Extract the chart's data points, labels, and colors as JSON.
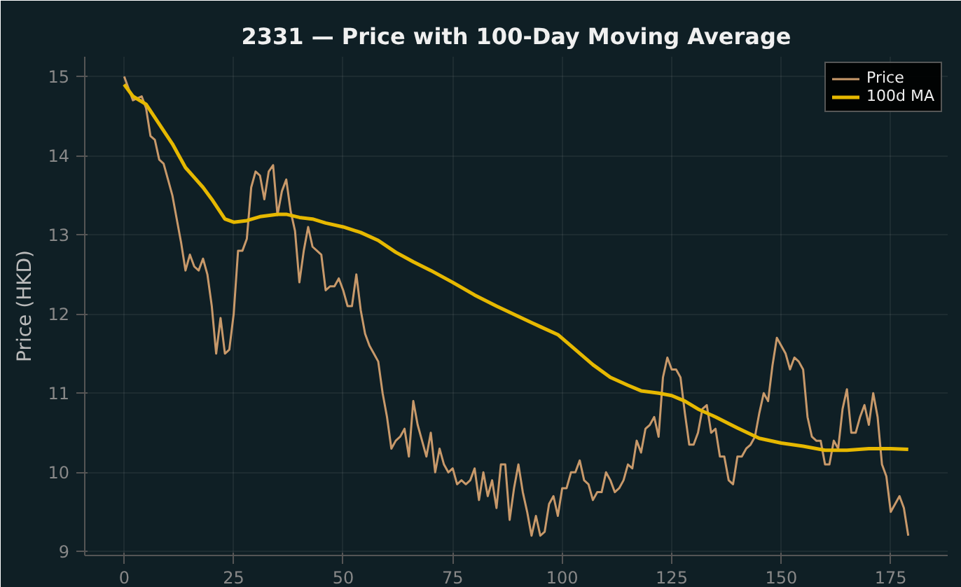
{
  "chart_data": {
    "type": "line",
    "title": "2331 — Price with 100-Day Moving Average",
    "ylabel": "Price (HKD)",
    "xlim": [
      -9,
      188
    ],
    "ylim": [
      8.95,
      15.25
    ],
    "xticks": [
      0,
      25,
      50,
      75,
      100,
      125,
      150,
      175
    ],
    "yticks": [
      9,
      10,
      11,
      12,
      13,
      14,
      15
    ],
    "grid": true,
    "legend": "top right",
    "line_style": "solid",
    "series": [
      {
        "name": "Price",
        "color": "#c8996a",
        "x": [
          0,
          2,
          4,
          5,
          6,
          7,
          8,
          9,
          10,
          11,
          12,
          13,
          14,
          15,
          16,
          17,
          18,
          19,
          20,
          21,
          22,
          23,
          24,
          25,
          26,
          27,
          28,
          29,
          30,
          31,
          32,
          33,
          34,
          35,
          36,
          37,
          38,
          39,
          40,
          41,
          42,
          43,
          44,
          45,
          46,
          47,
          48,
          49,
          50,
          51,
          52,
          53,
          54,
          55,
          56,
          57,
          58,
          59,
          60,
          61,
          62,
          63,
          64,
          65,
          66,
          67,
          68,
          69,
          70,
          71,
          72,
          73,
          74,
          75,
          76,
          77,
          78,
          79,
          80,
          81,
          82,
          83,
          84,
          85,
          86,
          87,
          88,
          89,
          90,
          91,
          92,
          93,
          94,
          95,
          96,
          97,
          98,
          99,
          100,
          101,
          102,
          103,
          104,
          105,
          106,
          107,
          108,
          109,
          110,
          111,
          112,
          113,
          114,
          115,
          116,
          117,
          118,
          119,
          120,
          121,
          122,
          123,
          124,
          125,
          126,
          127,
          128,
          129,
          130,
          131,
          132,
          133,
          134,
          135,
          136,
          137,
          138,
          139,
          140,
          141,
          142,
          143,
          144,
          145,
          146,
          147,
          148,
          149,
          150,
          151,
          152,
          153,
          154,
          155,
          156,
          157,
          158,
          159,
          160,
          161,
          162,
          163,
          164,
          165,
          166,
          167,
          168,
          169,
          170,
          171,
          172,
          173,
          174,
          175,
          176,
          177,
          178,
          179
        ],
        "values": [
          15.0,
          14.7,
          14.75,
          14.6,
          14.25,
          14.2,
          13.95,
          13.9,
          13.7,
          13.5,
          13.2,
          12.9,
          12.55,
          12.75,
          12.6,
          12.55,
          12.7,
          12.5,
          12.1,
          11.5,
          11.95,
          11.5,
          11.55,
          12.0,
          12.8,
          12.8,
          12.95,
          13.6,
          13.8,
          13.75,
          13.45,
          13.8,
          13.88,
          13.25,
          13.55,
          13.7,
          13.3,
          13.05,
          12.4,
          12.8,
          13.1,
          12.85,
          12.8,
          12.75,
          12.3,
          12.35,
          12.35,
          12.45,
          12.3,
          12.1,
          12.1,
          12.5,
          12.05,
          11.75,
          11.6,
          11.5,
          11.4,
          11.0,
          10.7,
          10.3,
          10.4,
          10.45,
          10.55,
          10.2,
          10.9,
          10.6,
          10.4,
          10.2,
          10.5,
          10.0,
          10.3,
          10.1,
          10.0,
          10.05,
          9.85,
          9.9,
          9.85,
          9.9,
          10.05,
          9.65,
          10.0,
          9.7,
          9.9,
          9.55,
          10.1,
          10.1,
          9.4,
          9.8,
          10.1,
          9.75,
          9.5,
          9.2,
          9.45,
          9.2,
          9.25,
          9.6,
          9.7,
          9.45,
          9.8,
          9.8,
          10.0,
          10.0,
          10.15,
          9.9,
          9.85,
          9.65,
          9.75,
          9.75,
          10.0,
          9.9,
          9.75,
          9.8,
          9.9,
          10.1,
          10.05,
          10.4,
          10.25,
          10.55,
          10.6,
          10.7,
          10.45,
          11.2,
          11.45,
          11.3,
          11.3,
          11.2,
          10.75,
          10.35,
          10.35,
          10.5,
          10.8,
          10.85,
          10.5,
          10.55,
          10.2,
          10.2,
          9.9,
          9.85,
          10.2,
          10.2,
          10.3,
          10.35,
          10.45,
          10.75,
          11.0,
          10.9,
          11.35,
          11.7,
          11.6,
          11.5,
          11.3,
          11.45,
          11.4,
          11.3,
          10.7,
          10.45,
          10.4,
          10.4,
          10.1,
          10.1,
          10.4,
          10.3,
          10.8,
          11.05,
          10.5,
          10.5,
          10.7,
          10.85,
          10.6,
          11.0,
          10.7,
          10.1,
          9.95,
          9.5,
          9.6,
          9.7,
          9.55,
          9.2
        ]
      },
      {
        "name": "100d MA",
        "color": "#e6b800",
        "x": [
          0,
          2,
          5,
          8,
          11,
          14,
          18,
          20,
          23,
          25,
          28,
          31,
          35,
          37,
          40,
          43,
          46,
          50,
          54,
          58,
          62,
          66,
          70,
          75,
          80,
          85,
          90,
          95,
          99,
          103,
          107,
          111,
          115,
          118,
          122,
          125,
          128,
          131,
          135,
          140,
          145,
          150,
          155,
          160,
          165,
          170,
          175,
          179
        ],
        "values": [
          14.9,
          14.75,
          14.65,
          14.4,
          14.15,
          13.85,
          13.6,
          13.45,
          13.2,
          13.16,
          13.18,
          13.23,
          13.26,
          13.26,
          13.22,
          13.2,
          13.15,
          13.1,
          13.03,
          12.93,
          12.78,
          12.66,
          12.55,
          12.4,
          12.24,
          12.1,
          11.97,
          11.84,
          11.74,
          11.55,
          11.36,
          11.2,
          11.1,
          11.03,
          11.0,
          10.97,
          10.9,
          10.8,
          10.7,
          10.56,
          10.43,
          10.37,
          10.33,
          10.28,
          10.28,
          10.3,
          10.3,
          10.29
        ]
      }
    ]
  }
}
